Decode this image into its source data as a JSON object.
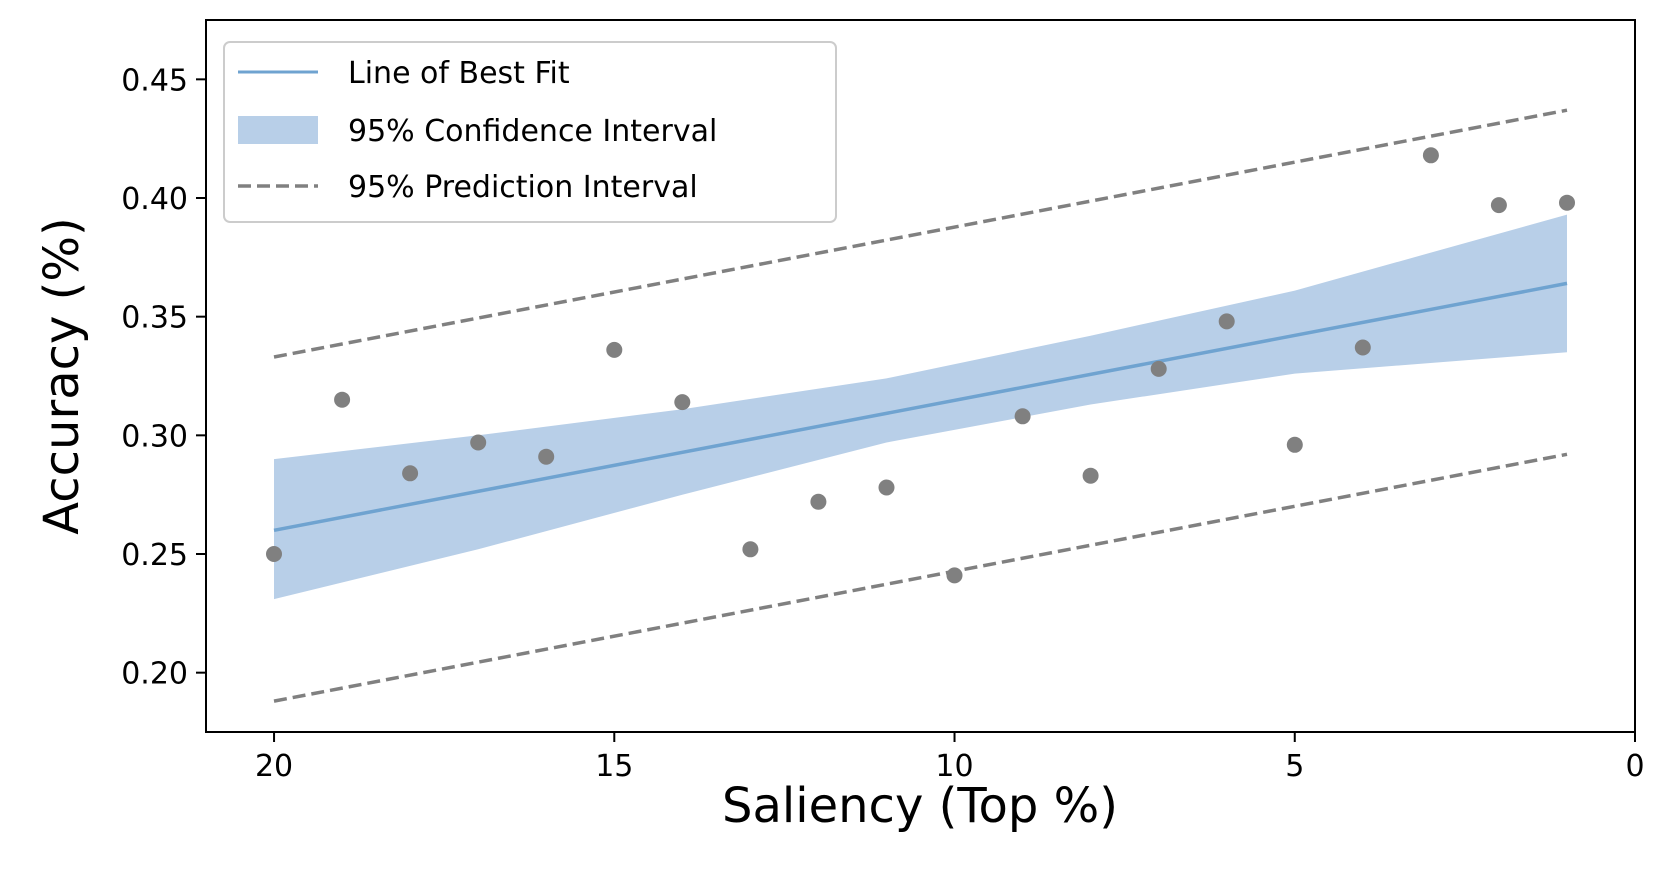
{
  "chart_data": {
    "type": "scatter",
    "xlabel": "Saliency (Top %)",
    "ylabel": "Accuracy (%)",
    "xlim": [
      21,
      0
    ],
    "ylim": [
      0.175,
      0.475
    ],
    "x_reversed": true,
    "grid": false,
    "legend_position": "top-left",
    "xticks": [
      20,
      15,
      10,
      5,
      0
    ],
    "xtick_labels": [
      "20",
      "15",
      "10",
      "5",
      "0"
    ],
    "yticks": [
      0.2,
      0.25,
      0.3,
      0.35,
      0.4,
      0.45
    ],
    "ytick_labels": [
      "0.20",
      "0.25",
      "0.30",
      "0.35",
      "0.40",
      "0.45"
    ],
    "legend": [
      {
        "label": "Line of Best Fit",
        "kind": "line",
        "color": "#6fa3d0"
      },
      {
        "label": "95% Confidence Interval",
        "kind": "band",
        "color": "#b8cfe8"
      },
      {
        "label": "95% Prediction Interval",
        "kind": "dashed",
        "color": "#808080"
      }
    ],
    "points": {
      "color": "#808080",
      "x": [
        20,
        19,
        18,
        17,
        16,
        15,
        14,
        13,
        12,
        11,
        10,
        9,
        8,
        7,
        6,
        5,
        4,
        3,
        2,
        1
      ],
      "y": [
        0.25,
        0.315,
        0.284,
        0.297,
        0.291,
        0.336,
        0.314,
        0.252,
        0.272,
        0.278,
        0.241,
        0.308,
        0.283,
        0.328,
        0.348,
        0.296,
        0.337,
        0.418,
        0.397,
        0.398
      ]
    },
    "best_fit": {
      "x": [
        20,
        1
      ],
      "y": [
        0.26,
        0.364
      ]
    },
    "confidence_interval": {
      "x": [
        20,
        17,
        14,
        11,
        8,
        5,
        1
      ],
      "upper": [
        0.29,
        0.3,
        0.311,
        0.324,
        0.342,
        0.361,
        0.393
      ],
      "lower": [
        0.231,
        0.252,
        0.275,
        0.297,
        0.313,
        0.326,
        0.335
      ]
    },
    "prediction_interval": {
      "x": [
        20,
        1
      ],
      "upper": [
        0.333,
        0.437
      ],
      "lower": [
        0.188,
        0.292
      ]
    }
  }
}
